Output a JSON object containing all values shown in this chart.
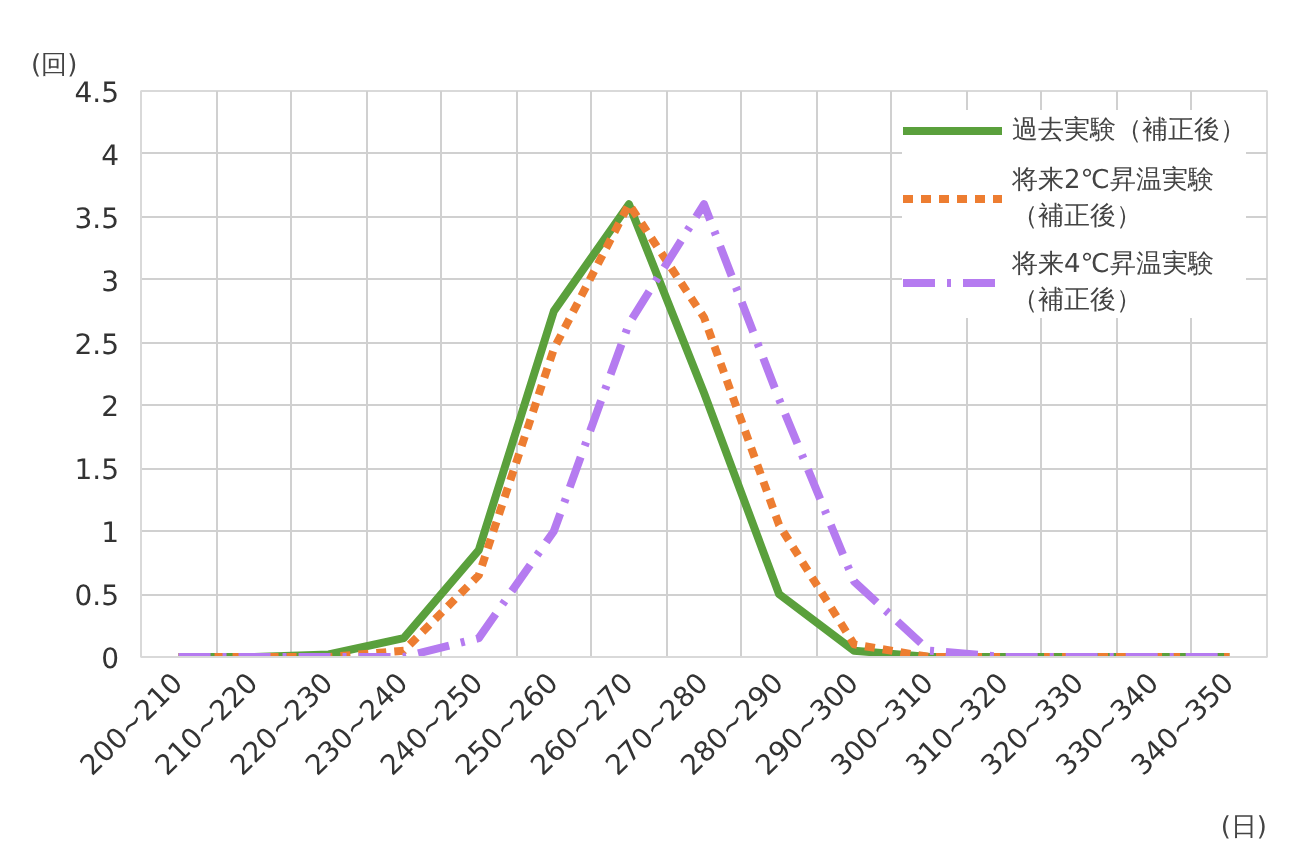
{
  "chart_data": {
    "type": "line",
    "ylabel": "(回)",
    "xlabel": "(日)",
    "categories": [
      "200~210",
      "210~220",
      "220~230",
      "230~240",
      "240~250",
      "250~260",
      "260~270",
      "270~280",
      "280~290",
      "290~300",
      "300~310",
      "310~320",
      "320~330",
      "330~340",
      "340~350"
    ],
    "series": [
      {
        "name": "過去実験（補正後）",
        "color": "#5aa03c",
        "line_style": "solid",
        "values": [
          0,
          0,
          0.02,
          0.15,
          0.85,
          2.75,
          3.6,
          2.1,
          0.5,
          0.05,
          0,
          0,
          0,
          0,
          0
        ]
      },
      {
        "name": "将来2℃昇温実験（補正後）",
        "color": "#ed7d31",
        "line_style": "dotted",
        "values": [
          0,
          0,
          0,
          0.05,
          0.65,
          2.45,
          3.6,
          2.7,
          1.05,
          0.1,
          0,
          0,
          0,
          0,
          0
        ]
      },
      {
        "name": "将来4℃昇温実験（補正後）",
        "color": "#b57bf0",
        "line_style": "dashed",
        "values": [
          0,
          0,
          0,
          0,
          0.15,
          1.0,
          2.65,
          3.6,
          2.05,
          0.6,
          0.05,
          0,
          0,
          0,
          0
        ]
      }
    ],
    "ylim": [
      0,
      4.5
    ],
    "yticks": [
      0,
      0.5,
      1,
      1.5,
      2,
      2.5,
      3,
      3.5,
      4,
      4.5
    ],
    "grid": true,
    "legend": "top right"
  }
}
